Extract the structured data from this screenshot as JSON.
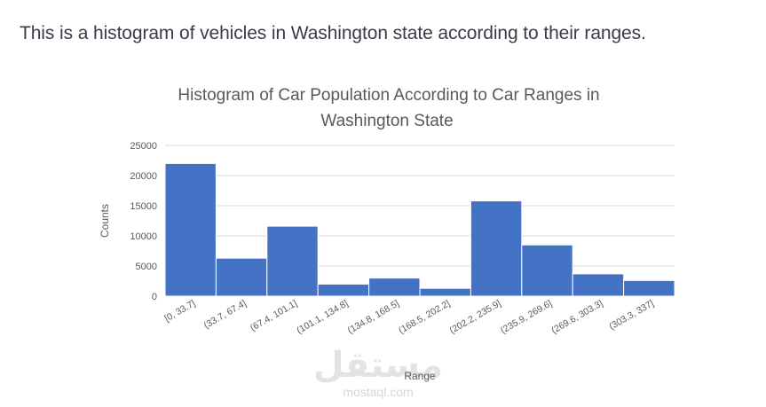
{
  "intro_text": "This is a histogram of vehicles in Washington state according to their ranges.",
  "watermark": {
    "arabic": "مستقل",
    "latin": "mostaql.com"
  },
  "chart_data": {
    "type": "bar",
    "title_lines": [
      "Histogram of Car Population According to Car Ranges in",
      "Washington State"
    ],
    "xlabel": "Range",
    "ylabel": "Counts",
    "ylim": [
      0,
      25000
    ],
    "yticks": [
      0,
      5000,
      10000,
      15000,
      20000,
      25000
    ],
    "grid": true,
    "legend": "none",
    "bar_color": "#4472c4",
    "categories": [
      "[0, 33.7]",
      "(33.7, 67.4]",
      "(67.4, 101.1]",
      "(101.1, 134.8]",
      "(134.8, 168.5]",
      "(168.5, 202.2]",
      "(202.2, 235.9]",
      "(235.9, 269.6]",
      "(269.6, 303.3]",
      "(303.3, 337]"
    ],
    "values": [
      22000,
      6300,
      11600,
      2000,
      3000,
      1300,
      15800,
      8500,
      3700,
      2600
    ]
  }
}
